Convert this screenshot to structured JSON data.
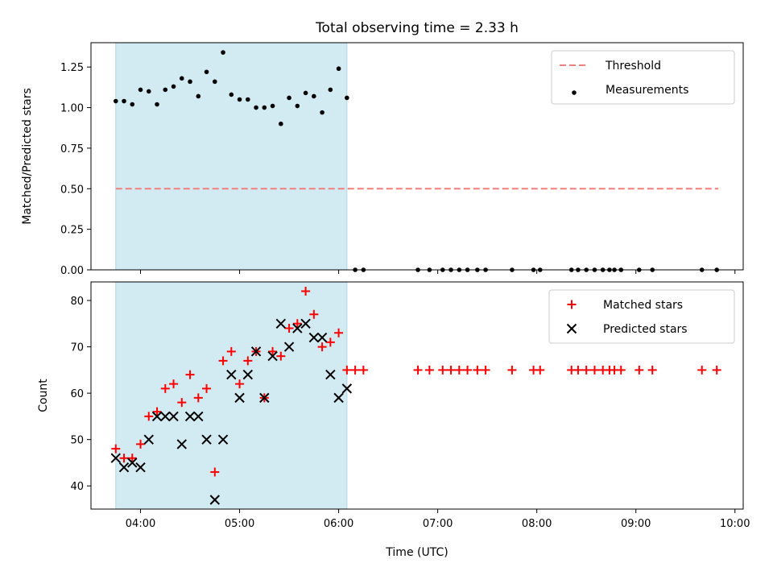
{
  "chart_data": [
    {
      "type": "scatter",
      "title": "Total observing time = 2.33 h",
      "xlabel": "",
      "ylabel": "Matched/Predicted stars",
      "xlim": [
        "03:30",
        "10:05"
      ],
      "ylim": [
        0,
        1.4
      ],
      "x_ticks": [
        "04:00",
        "05:00",
        "06:00",
        "07:00",
        "08:00",
        "09:00",
        "10:00"
      ],
      "y_ticks": [
        "0.00",
        "0.25",
        "0.50",
        "0.75",
        "1.00",
        "1.25"
      ],
      "shaded_interval": [
        "03:45",
        "06:05"
      ],
      "shade_color": "#add8e6",
      "grid": false,
      "legend_position": "top-right",
      "legend": [
        "Threshold",
        "Measurements"
      ],
      "series": [
        {
          "name": "Threshold",
          "kind": "dashed-line",
          "color": "#f08080",
          "x": [
            "03:45",
            "09:50"
          ],
          "y": [
            0.5,
            0.5
          ]
        },
        {
          "name": "Measurements",
          "kind": "points",
          "color": "#000000",
          "x": [
            "03:45",
            "03:50",
            "03:55",
            "04:00",
            "04:05",
            "04:10",
            "04:15",
            "04:20",
            "04:25",
            "04:30",
            "04:35",
            "04:40",
            "04:45",
            "04:50",
            "04:55",
            "05:00",
            "05:05",
            "05:10",
            "05:15",
            "05:20",
            "05:25",
            "05:30",
            "05:35",
            "05:40",
            "05:45",
            "05:50",
            "05:55",
            "06:00",
            "06:05",
            "06:10",
            "06:15",
            "06:48",
            "06:55",
            "07:03",
            "07:08",
            "07:13",
            "07:18",
            "07:24",
            "07:29",
            "07:45",
            "07:58",
            "08:02",
            "08:21",
            "08:25",
            "08:30",
            "08:35",
            "08:40",
            "08:44",
            "08:47",
            "08:51",
            "09:02",
            "09:10",
            "09:40",
            "09:49"
          ],
          "y": [
            1.04,
            1.04,
            1.02,
            1.11,
            1.1,
            1.02,
            1.11,
            1.13,
            1.18,
            1.16,
            1.07,
            1.22,
            1.16,
            1.34,
            1.08,
            1.05,
            1.05,
            1.0,
            1.0,
            1.01,
            0.9,
            1.06,
            1.01,
            1.09,
            1.07,
            0.97,
            1.11,
            1.24,
            1.06,
            0,
            0,
            0,
            0,
            0,
            0,
            0,
            0,
            0,
            0,
            0,
            0,
            0,
            0,
            0,
            0,
            0,
            0,
            0,
            0,
            0,
            0,
            0,
            0,
            0
          ]
        }
      ]
    },
    {
      "type": "scatter",
      "title": "",
      "xlabel": "Time (UTC)",
      "ylabel": "Count",
      "xlim": [
        "03:30",
        "10:05"
      ],
      "ylim": [
        35,
        84
      ],
      "x_ticks": [
        "04:00",
        "05:00",
        "06:00",
        "07:00",
        "08:00",
        "09:00",
        "10:00"
      ],
      "y_ticks": [
        "40",
        "50",
        "60",
        "70",
        "80"
      ],
      "shaded_interval": [
        "03:45",
        "06:05"
      ],
      "shade_color": "#add8e6",
      "grid": false,
      "legend_position": "top-right",
      "legend": [
        "Matched stars",
        "Predicted stars"
      ],
      "series": [
        {
          "name": "Matched stars",
          "marker": "plus",
          "color": "#ff0000",
          "x": [
            "03:45",
            "03:50",
            "03:55",
            "04:00",
            "04:05",
            "04:10",
            "04:15",
            "04:20",
            "04:25",
            "04:30",
            "04:35",
            "04:40",
            "04:45",
            "04:50",
            "04:55",
            "05:00",
            "05:05",
            "05:10",
            "05:15",
            "05:20",
            "05:25",
            "05:30",
            "05:35",
            "05:40",
            "05:45",
            "05:50",
            "05:55",
            "06:00",
            "06:05",
            "06:10",
            "06:15",
            "06:48",
            "06:55",
            "07:03",
            "07:08",
            "07:13",
            "07:18",
            "07:24",
            "07:29",
            "07:45",
            "07:58",
            "08:02",
            "08:21",
            "08:25",
            "08:30",
            "08:35",
            "08:40",
            "08:44",
            "08:47",
            "08:51",
            "09:02",
            "09:10",
            "09:40",
            "09:49"
          ],
          "y": [
            48,
            46,
            46,
            49,
            55,
            56,
            61,
            62,
            58,
            64,
            59,
            61,
            43,
            67,
            69,
            62,
            67,
            69,
            59,
            69,
            68,
            74,
            75,
            82,
            77,
            70,
            71,
            73,
            65,
            65,
            65,
            65,
            65,
            65,
            65,
            65,
            65,
            65,
            65,
            65,
            65,
            65,
            65,
            65,
            65,
            65,
            65,
            65,
            65,
            65,
            65,
            65,
            65,
            65
          ]
        },
        {
          "name": "Predicted stars",
          "marker": "x",
          "color": "#000000",
          "x": [
            "03:45",
            "03:50",
            "03:55",
            "04:00",
            "04:05",
            "04:10",
            "04:15",
            "04:20",
            "04:25",
            "04:30",
            "04:35",
            "04:40",
            "04:45",
            "04:50",
            "04:55",
            "05:00",
            "05:05",
            "05:10",
            "05:15",
            "05:20",
            "05:25",
            "05:30",
            "05:35",
            "05:40",
            "05:45",
            "05:50",
            "05:55",
            "06:00",
            "06:05"
          ],
          "y": [
            46,
            44,
            45,
            44,
            50,
            55,
            55,
            55,
            49,
            55,
            55,
            50,
            37,
            50,
            64,
            59,
            64,
            69,
            59,
            68,
            75,
            70,
            74,
            75,
            72,
            72,
            64,
            59,
            61
          ]
        }
      ]
    }
  ]
}
